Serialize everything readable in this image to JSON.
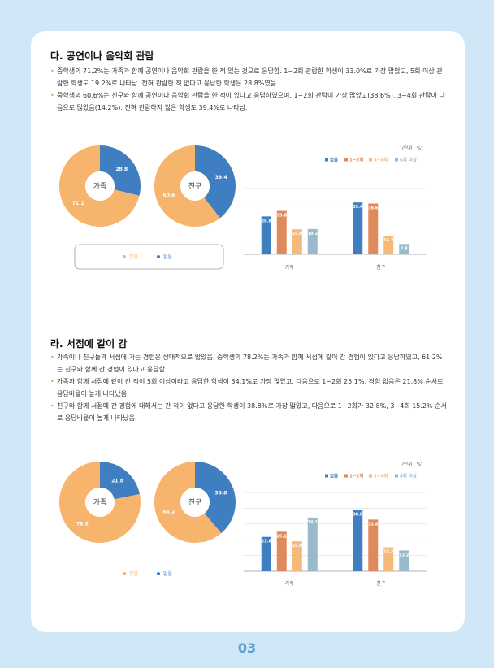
{
  "page_number": "03",
  "sections": [
    {
      "title": "다. 공연이나 음악회 관람",
      "bullets": [
        "중학생의 71.2%는 가족과 함께 공연이나 음악회 관람을 한 적 있는 것으로 응답함. 1~2회 관람한 학생이 33.0%로 가장 많았고, 5회 이상 관람한 학생도 19.2%로 나타남. 전혀 관람한 적 없다고 응답한 학생은 28.8%였음.",
        "중학생의 60.6%는 친구와 함께 공연이나 음악회 관람을 한 적이 있다고 응답하였으며, 1~2회 관람이 가장 많았고(38.6%), 3~4회 관람이 다음으로 많았음(14.2%). 전혀 관람하지 않은 학생도 39.4%로 나타남."
      ],
      "donut_legend": [
        {
          "name": "있음",
          "color": "#f6b46c"
        },
        {
          "name": "없음",
          "color": "#3f7fc1"
        }
      ],
      "donuts": [
        {
          "label": "가족",
          "values": [
            71.2,
            28.8
          ]
        },
        {
          "label": "친구",
          "values": [
            60.6,
            39.4
          ]
        }
      ],
      "bar_chart": {
        "type": "bar",
        "unit": "(단위 : %)",
        "categories": [
          "가족",
          "친구"
        ],
        "ylim": [
          0,
          50
        ],
        "yticks": [
          0,
          10,
          20,
          30,
          40,
          50
        ],
        "grid": true,
        "series": [
          {
            "name": "없음",
            "color": "#3f7fc1",
            "values": [
              28.8,
              39.4
            ],
            "value_labels": [
              "28.8",
              "39.4"
            ]
          },
          {
            "name": "1~2회",
            "color": "#e08a5c",
            "values": [
              33.0,
              38.6
            ],
            "value_labels": [
              "33.0",
              "38.6"
            ]
          },
          {
            "name": "3~4회",
            "color": "#f6b978",
            "values": [
              19.0,
              14.2
            ],
            "value_labels": [
              "19.0",
              "14.2"
            ]
          },
          {
            "name": "5회 이상",
            "color": "#9bb9cc",
            "values": [
              19.2,
              7.8
            ],
            "value_labels": [
              "19.2",
              "7.8"
            ]
          }
        ]
      }
    },
    {
      "title": "라. 서점에 같이 감",
      "bullets": [
        "가족이나 친구들과 서점에 가는 경험은 상대적으로 많았음. 중학생의 78.2%는 가족과 함께 서점에 같이 간 경험이 있다고 응답하였고, 61.2%는 친구와 함께 간 경험이 있다고 응답함.",
        "가족과 함께 서점에 같이 간 적이 5회 이상이라고 응답한 학생이 34.1%로 가장 많았고, 다음으로 1~2회 25.1%, 경험 없음은 21.8% 순서로 응답비율이 높게 나타났음.",
        "친구와 함께 서점에 간 경험에 대해서는 간 적이 없다고 응답한 학생이 38.8%로 가장 많았고, 다음으로 1~2회가 32.8%, 3~4회 15.2% 순서로 응답비율이 높게 나타났음."
      ],
      "donut_legend": [
        {
          "name": "있음",
          "color": "#f6b46c"
        },
        {
          "name": "없음",
          "color": "#3f7fc1"
        }
      ],
      "donuts": [
        {
          "label": "가족",
          "values": [
            78.2,
            21.8
          ]
        },
        {
          "label": "친구",
          "values": [
            61.2,
            38.8
          ]
        }
      ],
      "bar_chart": {
        "type": "bar",
        "unit": "(단위 : %)",
        "categories": [
          "가족",
          "친구"
        ],
        "ylim": [
          0,
          50
        ],
        "yticks": [
          0,
          10,
          20,
          30,
          40,
          50
        ],
        "grid": true,
        "series": [
          {
            "name": "없음",
            "color": "#3f7fc1",
            "values": [
              21.8,
              38.8
            ],
            "value_labels": [
              "21.8",
              "38.8"
            ]
          },
          {
            "name": "1~2회",
            "color": "#e08a5c",
            "values": [
              25.1,
              32.8
            ],
            "value_labels": [
              "25.1",
              "32.8"
            ]
          },
          {
            "name": "3~4회",
            "color": "#f6b978",
            "values": [
              19.0,
              15.2
            ],
            "value_labels": [
              "19.0",
              "15.2"
            ]
          },
          {
            "name": "5회 이상",
            "color": "#9bb9cc",
            "values": [
              34.1,
              13.2
            ],
            "value_labels": [
              "34.1",
              "13.2"
            ]
          }
        ]
      }
    }
  ]
}
